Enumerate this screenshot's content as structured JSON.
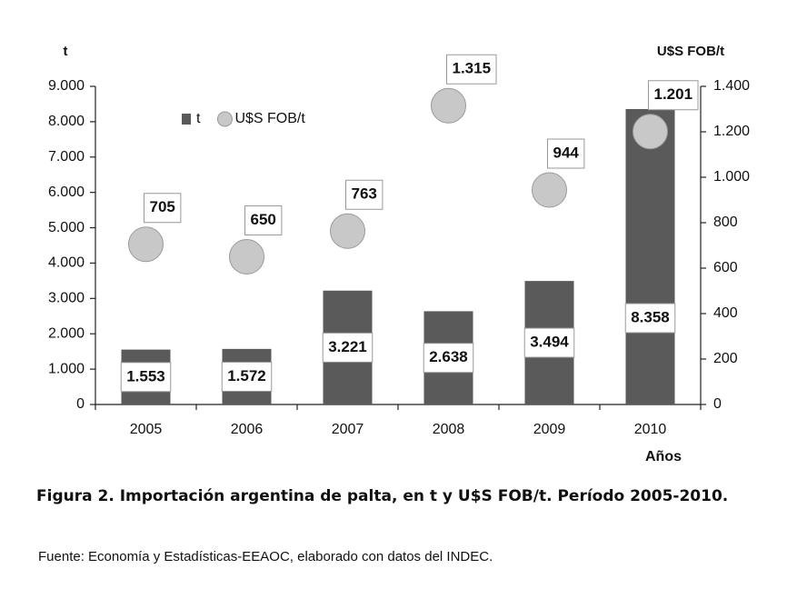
{
  "chart_data": {
    "type": "bar",
    "y_axis_title": "t",
    "y2_axis_title": "U$S FOB/t",
    "x_axis_title": "Años",
    "categories": [
      "2005",
      "2006",
      "2007",
      "2008",
      "2009",
      "2010"
    ],
    "series": [
      {
        "name": "t",
        "type": "bar",
        "color": "#5a5a5a",
        "values": [
          1553,
          1572,
          3221,
          2638,
          3494,
          8358
        ],
        "value_labels": [
          "1.553",
          "1.572",
          "3.221",
          "2.638",
          "3.494",
          "8.358"
        ]
      },
      {
        "name": "U$S FOB/t",
        "type": "scatter",
        "axis": "y2",
        "color": "#c8c8c8",
        "values": [
          705,
          650,
          763,
          1315,
          944,
          1201
        ],
        "value_labels": [
          "705",
          "650",
          "763",
          "1.315",
          "944",
          "1.201"
        ]
      }
    ],
    "ylim": [
      0,
      9000
    ],
    "yticks": [
      0,
      {
        "value": 1000,
        "label": "1.000"
      },
      {
        "value": 2000,
        "label": "2.000"
      },
      {
        "value": 3000,
        "label": "3.000"
      },
      {
        "value": 4000,
        "label": "4.000"
      },
      {
        "value": 5000,
        "label": "5.000"
      },
      {
        "value": 6000,
        "label": "6.000"
      },
      {
        "value": 7000,
        "label": "7.000"
      },
      {
        "value": 8000,
        "label": "8.000"
      },
      {
        "value": 9000,
        "label": "9.000"
      }
    ],
    "y2lim": [
      0,
      1400
    ],
    "y2ticks": [
      0,
      200,
      400,
      600,
      800,
      {
        "value": 1000,
        "label": "1.000"
      },
      {
        "value": 1200,
        "label": "1.200"
      },
      {
        "value": 1400,
        "label": "1.400"
      }
    ],
    "grid": false,
    "legend": "top-left",
    "caption": "Figura 2. Importación argentina de palta, en t y U$S FOB/t. Período 2005-2010.",
    "source": "Fuente: Economía y Estadísticas-EEAOC, elaborado con datos del  INDEC."
  }
}
